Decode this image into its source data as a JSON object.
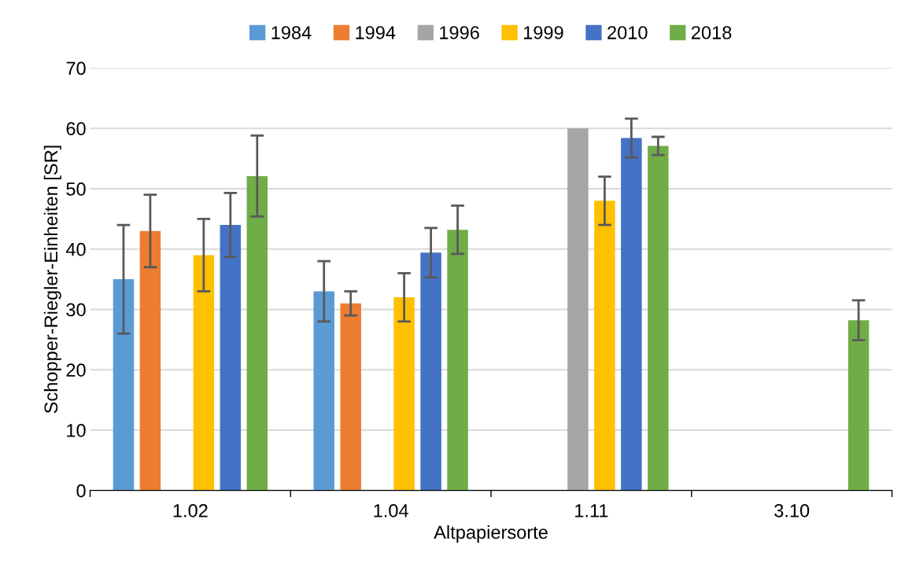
{
  "chart_data": {
    "type": "bar",
    "xlabel": "Altpapiersorte",
    "ylabel": "Schopper-Riegler-Einheiten [SR]",
    "categories": [
      "1.02",
      "1.04",
      "1.11",
      "3.10"
    ],
    "series": [
      {
        "name": "1984",
        "color": "#5b9bd5",
        "values": [
          35,
          33,
          null,
          null
        ],
        "errors": [
          9,
          5,
          null,
          null
        ]
      },
      {
        "name": "1994",
        "color": "#ed7d31",
        "values": [
          43,
          31,
          null,
          null
        ],
        "errors": [
          6,
          2,
          null,
          null
        ]
      },
      {
        "name": "1996",
        "color": "#a5a5a5",
        "values": [
          null,
          null,
          60,
          null
        ],
        "errors": [
          null,
          null,
          null,
          null
        ]
      },
      {
        "name": "1999",
        "color": "#ffc000",
        "values": [
          39,
          32,
          48,
          null
        ],
        "errors": [
          6,
          4,
          4,
          null
        ]
      },
      {
        "name": "2010",
        "color": "#4472c4",
        "values": [
          44,
          39.4,
          58.4,
          null
        ],
        "errors": [
          5.3,
          4.1,
          3.2,
          null
        ]
      },
      {
        "name": "2018",
        "color": "#70ad47",
        "values": [
          52.1,
          43.2,
          57.1,
          28.2
        ],
        "errors": [
          6.7,
          4,
          1.5,
          3.3
        ]
      }
    ],
    "ylim": [
      0,
      70
    ],
    "yticks": [
      0,
      10,
      20,
      30,
      40,
      50,
      60,
      70
    ],
    "grid": "y",
    "legend": "top"
  }
}
